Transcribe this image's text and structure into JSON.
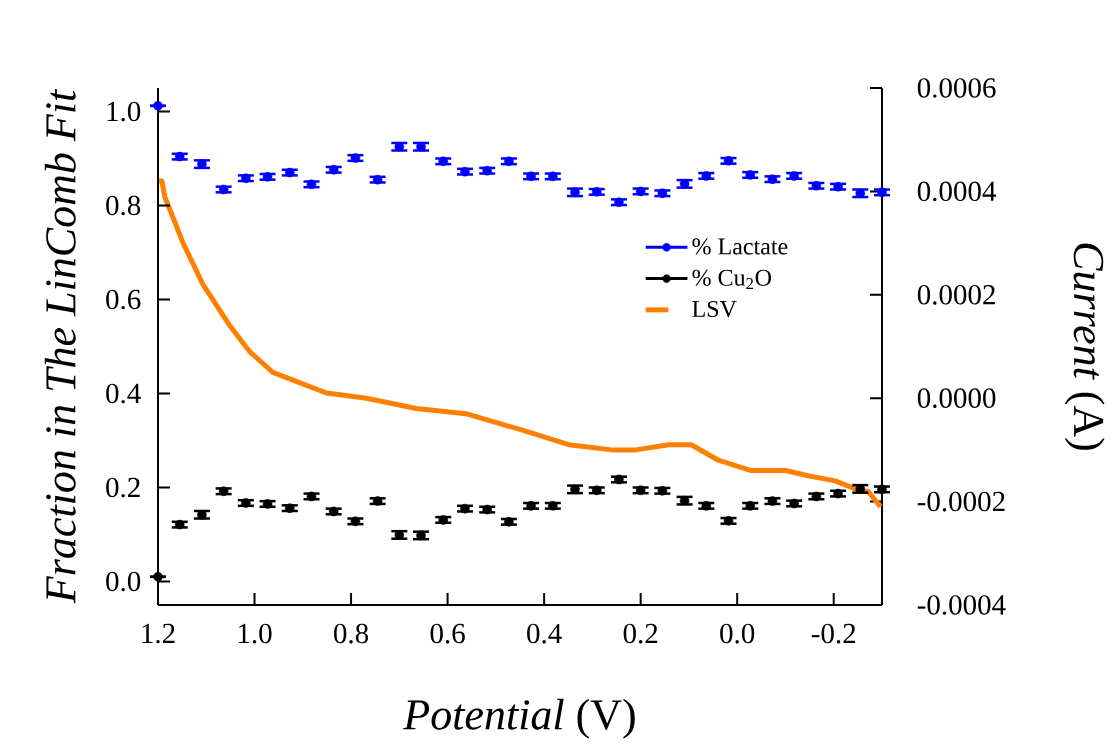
{
  "chart_data": {
    "type": "scatter",
    "xlabel": "*Potential* (V)",
    "ylabel": "Fraction in The LinComb Fit",
    "y2label": "*Current* (A)",
    "xlim": [
      1.2,
      -0.3
    ],
    "xticks": [
      {
        "value": 1.2,
        "label": "1.2"
      },
      {
        "value": 1.0,
        "label": "1.0"
      },
      {
        "value": 0.8,
        "label": "0.8"
      },
      {
        "value": 0.6,
        "label": "0.6"
      },
      {
        "value": 0.4,
        "label": "0.4"
      },
      {
        "value": 0.2,
        "label": "0.2"
      },
      {
        "value": 0.0,
        "label": "0.0"
      },
      {
        "value": -0.2,
        "label": "-0.2"
      }
    ],
    "ylim": [
      -0.05,
      1.05
    ],
    "yticks": [
      {
        "value": 0.0,
        "label": "0.0"
      },
      {
        "value": 0.2,
        "label": "0.2"
      },
      {
        "value": 0.4,
        "label": "0.4"
      },
      {
        "value": 0.6,
        "label": "0.6"
      },
      {
        "value": 0.8,
        "label": "0.8"
      },
      {
        "value": 1.0,
        "label": "1.0"
      }
    ],
    "y2lim": [
      -0.0004,
      0.0006
    ],
    "y2ticks": [
      {
        "value": -0.0004,
        "label": "-0.0004"
      },
      {
        "value": -0.0002,
        "label": "-0.0002"
      },
      {
        "value": 0.0,
        "label": "0.0000"
      },
      {
        "value": 0.0002,
        "label": "0.0002"
      },
      {
        "value": 0.0004,
        "label": "0.0004"
      },
      {
        "value": 0.0006,
        "label": "0.0006"
      }
    ],
    "legend": "right",
    "marker": "circle",
    "x": [
      1.2,
      1.155,
      1.109,
      1.064,
      1.018,
      0.973,
      0.927,
      0.882,
      0.836,
      0.791,
      0.745,
      0.7,
      0.655,
      0.609,
      0.564,
      0.518,
      0.473,
      0.427,
      0.382,
      0.336,
      0.291,
      0.245,
      0.2,
      0.155,
      0.109,
      0.064,
      0.018,
      -0.027,
      -0.073,
      -0.118,
      -0.164,
      -0.209,
      -0.255,
      -0.3
    ],
    "series": [
      {
        "name": "% Lactate",
        "color": "#0000ff",
        "values": [
          1.012,
          0.904,
          0.888,
          0.834,
          0.858,
          0.861,
          0.87,
          0.845,
          0.876,
          0.901,
          0.855,
          0.925,
          0.925,
          0.894,
          0.872,
          0.874,
          0.894,
          0.862,
          0.862,
          0.828,
          0.829,
          0.807,
          0.83,
          0.826,
          0.846,
          0.863,
          0.895,
          0.865,
          0.856,
          0.863,
          0.842,
          0.84,
          0.826,
          0.828
        ],
        "errors": [
          null,
          0.006,
          0.008,
          0.006,
          0.006,
          0.006,
          0.006,
          0.006,
          0.006,
          0.006,
          0.006,
          0.008,
          0.008,
          0.006,
          0.006,
          0.006,
          0.006,
          0.006,
          0.006,
          0.008,
          0.006,
          0.006,
          0.006,
          0.006,
          0.008,
          0.006,
          0.006,
          0.006,
          0.006,
          0.006,
          0.006,
          0.006,
          0.008,
          0.006
        ]
      },
      {
        "name": "% Cu$_{2}$O",
        "color": "#000000",
        "values": [
          0.01,
          0.121,
          0.142,
          0.192,
          0.167,
          0.165,
          0.156,
          0.181,
          0.149,
          0.128,
          0.171,
          0.099,
          0.098,
          0.131,
          0.155,
          0.153,
          0.127,
          0.161,
          0.161,
          0.196,
          0.194,
          0.217,
          0.194,
          0.193,
          0.172,
          0.161,
          0.129,
          0.161,
          0.171,
          0.166,
          0.181,
          0.187,
          0.197,
          0.196
        ],
        "errors": [
          null,
          0.006,
          0.008,
          0.006,
          0.006,
          0.006,
          0.006,
          0.006,
          0.006,
          0.006,
          0.006,
          0.008,
          0.008,
          0.006,
          0.006,
          0.006,
          0.006,
          0.006,
          0.006,
          0.008,
          0.006,
          0.006,
          0.006,
          0.006,
          0.008,
          0.006,
          0.006,
          0.006,
          0.006,
          0.006,
          0.006,
          0.006,
          0.008,
          0.006
        ]
      },
      {
        "name": "LSV",
        "type": "line",
        "axis": "y2",
        "color": "#ff8000",
        "marker": "none",
        "line_style": "solid",
        "x": [
          1.2,
          1.192,
          1.186,
          1.148,
          1.107,
          1.051,
          1.01,
          0.962,
          0.907,
          0.851,
          0.768,
          0.665,
          0.562,
          0.452,
          0.349,
          0.26,
          0.21,
          0.142,
          0.095,
          0.039,
          -0.029,
          -0.1,
          -0.147,
          -0.203,
          -0.257,
          -0.271,
          -0.297
        ],
        "values": [
          0.00042,
          0.00042,
          0.00039,
          0.0003,
          0.00022,
          0.00014,
          9e-05,
          5e-05,
          3e-05,
          1e-05,
          0.0,
          -2e-05,
          -3e-05,
          -6e-05,
          -9e-05,
          -0.0001,
          -0.0001,
          -9e-05,
          -9e-05,
          -0.00012,
          -0.00014,
          -0.00014,
          -0.00015,
          -0.00016,
          -0.00018,
          -0.00018,
          -0.00021
        ]
      }
    ]
  }
}
